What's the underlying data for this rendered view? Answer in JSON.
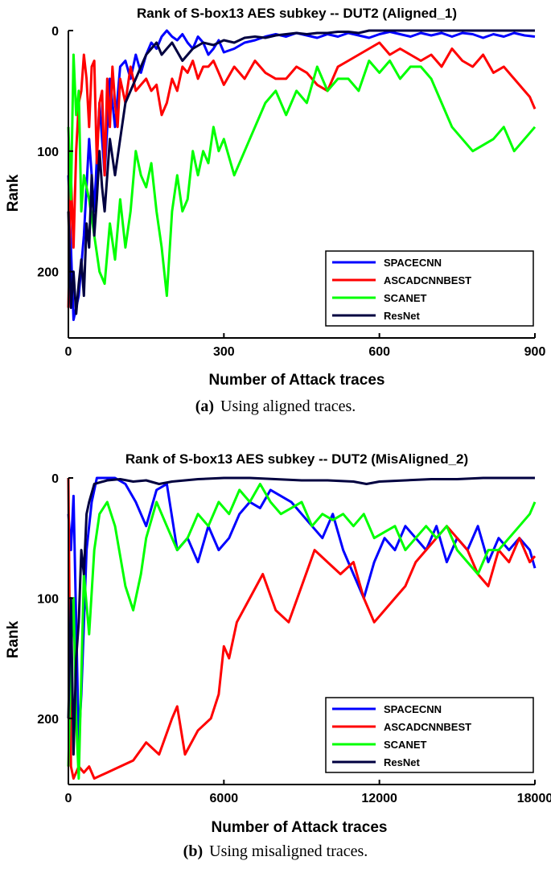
{
  "chart_data": [
    {
      "type": "line",
      "title": "Rank of S-box13 AES subkey -- DUT2 (Aligned_1)",
      "xlabel": "Number of Attack traces",
      "ylabel": "Rank",
      "xlim": [
        0,
        900
      ],
      "ylim": [
        255,
        0
      ],
      "xticks": [
        "0",
        "300",
        "600",
        "900"
      ],
      "yticks": [
        "0",
        "100",
        "200"
      ],
      "legend_placement": "bottom-right",
      "grid": false,
      "series": [
        {
          "name": "SPACECNN",
          "color": "#0000ff",
          "x": [
            0,
            10,
            20,
            30,
            40,
            50,
            60,
            70,
            80,
            90,
            100,
            110,
            120,
            130,
            140,
            150,
            160,
            170,
            180,
            190,
            200,
            210,
            220,
            230,
            240,
            250,
            260,
            270,
            280,
            290,
            300,
            320,
            340,
            360,
            380,
            400,
            420,
            440,
            460,
            480,
            500,
            520,
            540,
            560,
            580,
            600,
            620,
            640,
            660,
            680,
            700,
            720,
            740,
            760,
            780,
            800,
            820,
            840,
            860,
            880,
            900
          ],
          "y": [
            120,
            240,
            220,
            170,
            90,
            150,
            60,
            120,
            40,
            80,
            30,
            25,
            40,
            20,
            35,
            20,
            10,
            15,
            5,
            0,
            5,
            8,
            3,
            10,
            15,
            5,
            10,
            20,
            15,
            8,
            18,
            15,
            10,
            8,
            5,
            3,
            5,
            2,
            4,
            6,
            3,
            5,
            2,
            4,
            6,
            3,
            1,
            3,
            5,
            2,
            4,
            2,
            5,
            2,
            3,
            6,
            3,
            5,
            2,
            4,
            5
          ]
        },
        {
          "name": "ASCADCNNBEST",
          "color": "#ff0000",
          "x": [
            0,
            5,
            10,
            15,
            20,
            25,
            30,
            35,
            40,
            45,
            50,
            55,
            60,
            65,
            70,
            75,
            80,
            85,
            90,
            95,
            100,
            110,
            120,
            130,
            140,
            150,
            160,
            170,
            180,
            190,
            200,
            210,
            220,
            230,
            240,
            250,
            260,
            270,
            280,
            290,
            300,
            320,
            340,
            360,
            380,
            400,
            420,
            440,
            460,
            480,
            500,
            520,
            540,
            560,
            580,
            600,
            620,
            640,
            660,
            680,
            700,
            720,
            740,
            760,
            780,
            800,
            820,
            840,
            860,
            880,
            890,
            900
          ],
          "y": [
            230,
            120,
            180,
            100,
            60,
            50,
            20,
            40,
            80,
            30,
            25,
            110,
            60,
            50,
            120,
            40,
            80,
            30,
            60,
            80,
            40,
            60,
            30,
            50,
            45,
            40,
            50,
            45,
            70,
            60,
            40,
            50,
            30,
            35,
            25,
            40,
            30,
            30,
            25,
            35,
            45,
            30,
            40,
            25,
            35,
            40,
            40,
            30,
            35,
            45,
            50,
            30,
            25,
            20,
            15,
            10,
            20,
            15,
            20,
            25,
            20,
            30,
            15,
            25,
            30,
            20,
            35,
            30,
            40,
            50,
            55,
            65
          ]
        },
        {
          "name": "SCANET",
          "color": "#00ff00",
          "x": [
            0,
            5,
            10,
            15,
            20,
            25,
            30,
            40,
            50,
            60,
            70,
            80,
            90,
            100,
            110,
            120,
            130,
            140,
            150,
            160,
            170,
            180,
            190,
            200,
            210,
            220,
            230,
            240,
            250,
            260,
            270,
            280,
            290,
            300,
            320,
            340,
            360,
            380,
            400,
            420,
            440,
            460,
            480,
            500,
            520,
            540,
            560,
            580,
            600,
            620,
            640,
            660,
            680,
            700,
            720,
            740,
            760,
            780,
            800,
            820,
            840,
            860,
            880,
            900
          ],
          "y": [
            80,
            140,
            20,
            70,
            50,
            150,
            120,
            140,
            170,
            200,
            210,
            160,
            190,
            140,
            180,
            150,
            100,
            120,
            130,
            110,
            150,
            180,
            220,
            150,
            120,
            150,
            140,
            100,
            120,
            100,
            110,
            80,
            100,
            90,
            120,
            100,
            80,
            60,
            50,
            70,
            50,
            60,
            30,
            50,
            40,
            40,
            50,
            25,
            35,
            25,
            40,
            30,
            30,
            40,
            60,
            80,
            90,
            100,
            95,
            90,
            80,
            100,
            90,
            80
          ]
        },
        {
          "name": "ResNet",
          "color": "#000040",
          "x": [
            0,
            5,
            10,
            15,
            20,
            25,
            30,
            35,
            40,
            45,
            50,
            55,
            60,
            65,
            70,
            80,
            90,
            100,
            110,
            120,
            130,
            140,
            150,
            160,
            170,
            180,
            190,
            200,
            220,
            240,
            260,
            280,
            300,
            320,
            340,
            360,
            380,
            400,
            420,
            440,
            460,
            480,
            500,
            520,
            540,
            560,
            580,
            600,
            620,
            640,
            660,
            680,
            700,
            720,
            740,
            760,
            780,
            800,
            820,
            840,
            860,
            880,
            900
          ],
          "y": [
            150,
            230,
            200,
            235,
            210,
            190,
            220,
            160,
            180,
            120,
            170,
            140,
            100,
            130,
            150,
            90,
            120,
            90,
            60,
            50,
            40,
            30,
            20,
            15,
            10,
            20,
            15,
            10,
            25,
            15,
            10,
            12,
            8,
            10,
            6,
            5,
            6,
            4,
            3,
            2,
            3,
            2,
            2,
            1,
            1,
            2,
            0,
            0,
            0,
            0,
            0,
            0,
            0,
            0,
            0,
            0,
            0,
            0,
            0,
            0,
            0,
            0,
            0
          ]
        }
      ]
    },
    {
      "type": "line",
      "title": "Rank of S-box13 AES subkey -- DUT2 (MisAligned_2)",
      "xlabel": "Number of Attack traces",
      "ylabel": "Rank",
      "xlim": [
        0,
        18000
      ],
      "ylim": [
        255,
        0
      ],
      "xticks": [
        "0",
        "6000",
        "12000",
        "18000"
      ],
      "yticks": [
        "0",
        "100",
        "200"
      ],
      "legend_placement": "bottom-right",
      "grid": false,
      "series": [
        {
          "name": "SPACECNN",
          "color": "#0000ff",
          "x": [
            0,
            100,
            200,
            300,
            400,
            500,
            700,
            900,
            1100,
            1400,
            1800,
            2200,
            2600,
            3000,
            3400,
            3800,
            4200,
            4600,
            5000,
            5400,
            5800,
            6200,
            6600,
            7000,
            7400,
            7800,
            8200,
            8600,
            9000,
            9400,
            9800,
            10200,
            10600,
            11000,
            11400,
            11800,
            12200,
            12600,
            13000,
            13400,
            13800,
            14200,
            14600,
            15000,
            15400,
            15800,
            16200,
            16600,
            17000,
            17400,
            17800,
            18000
          ],
          "y": [
            30,
            60,
            15,
            120,
            220,
            180,
            60,
            20,
            0,
            0,
            0,
            5,
            20,
            40,
            10,
            5,
            60,
            50,
            70,
            40,
            60,
            50,
            30,
            20,
            25,
            10,
            15,
            20,
            30,
            40,
            50,
            30,
            60,
            80,
            100,
            70,
            50,
            60,
            40,
            50,
            60,
            40,
            70,
            50,
            60,
            40,
            70,
            50,
            60,
            50,
            60,
            75
          ]
        },
        {
          "name": "ASCADCNNBEST",
          "color": "#ff0000",
          "x": [
            0,
            100,
            200,
            400,
            600,
            800,
            1000,
            1500,
            2000,
            2500,
            3000,
            3500,
            4000,
            4200,
            4500,
            5000,
            5500,
            5800,
            6000,
            6200,
            6500,
            7000,
            7500,
            8000,
            8500,
            9000,
            9500,
            10000,
            10500,
            11000,
            11400,
            11800,
            12200,
            12600,
            13000,
            13400,
            13800,
            14200,
            14600,
            15000,
            15400,
            15800,
            16200,
            16600,
            17000,
            17400,
            17800,
            18000
          ],
          "y": [
            0,
            240,
            250,
            240,
            245,
            240,
            250,
            245,
            240,
            235,
            220,
            230,
            200,
            190,
            230,
            210,
            200,
            180,
            140,
            150,
            120,
            100,
            80,
            110,
            120,
            90,
            60,
            70,
            80,
            70,
            100,
            120,
            110,
            100,
            90,
            70,
            60,
            50,
            40,
            50,
            60,
            80,
            90,
            60,
            70,
            50,
            70,
            65
          ]
        },
        {
          "name": "SCANET",
          "color": "#00ff00",
          "x": [
            0,
            100,
            200,
            300,
            400,
            600,
            800,
            1000,
            1200,
            1500,
            1800,
            2200,
            2500,
            2800,
            3000,
            3400,
            3800,
            4200,
            4600,
            5000,
            5400,
            5800,
            6200,
            6600,
            7000,
            7400,
            7800,
            8200,
            8600,
            9000,
            9400,
            9800,
            10200,
            10600,
            11000,
            11400,
            11800,
            12200,
            12600,
            13000,
            13400,
            13800,
            14200,
            14600,
            15000,
            15400,
            15800,
            16200,
            16600,
            17000,
            17400,
            17800,
            18000
          ],
          "y": [
            240,
            150,
            100,
            200,
            250,
            80,
            130,
            60,
            30,
            20,
            40,
            90,
            110,
            80,
            50,
            20,
            40,
            60,
            50,
            30,
            40,
            20,
            30,
            10,
            20,
            5,
            20,
            30,
            25,
            20,
            40,
            30,
            35,
            30,
            40,
            30,
            50,
            45,
            40,
            60,
            50,
            40,
            50,
            40,
            60,
            70,
            80,
            60,
            60,
            50,
            40,
            30,
            20
          ]
        },
        {
          "name": "ResNet",
          "color": "#000040",
          "x": [
            0,
            100,
            200,
            300,
            400,
            500,
            600,
            700,
            800,
            1000,
            1500,
            2000,
            2500,
            3000,
            3500,
            4000,
            4500,
            5000,
            6000,
            7000,
            8000,
            9000,
            10000,
            11000,
            11500,
            12000,
            13000,
            14000,
            15000,
            16000,
            17000,
            18000
          ],
          "y": [
            200,
            100,
            230,
            150,
            120,
            60,
            80,
            30,
            20,
            5,
            2,
            1,
            3,
            2,
            5,
            3,
            2,
            1,
            0,
            0,
            1,
            2,
            2,
            3,
            5,
            3,
            2,
            1,
            1,
            0,
            0,
            0
          ]
        }
      ]
    }
  ],
  "captions": [
    {
      "letter": "(a)",
      "text": "Using aligned traces."
    },
    {
      "letter": "(b)",
      "text": "Using misaligned traces."
    }
  ]
}
